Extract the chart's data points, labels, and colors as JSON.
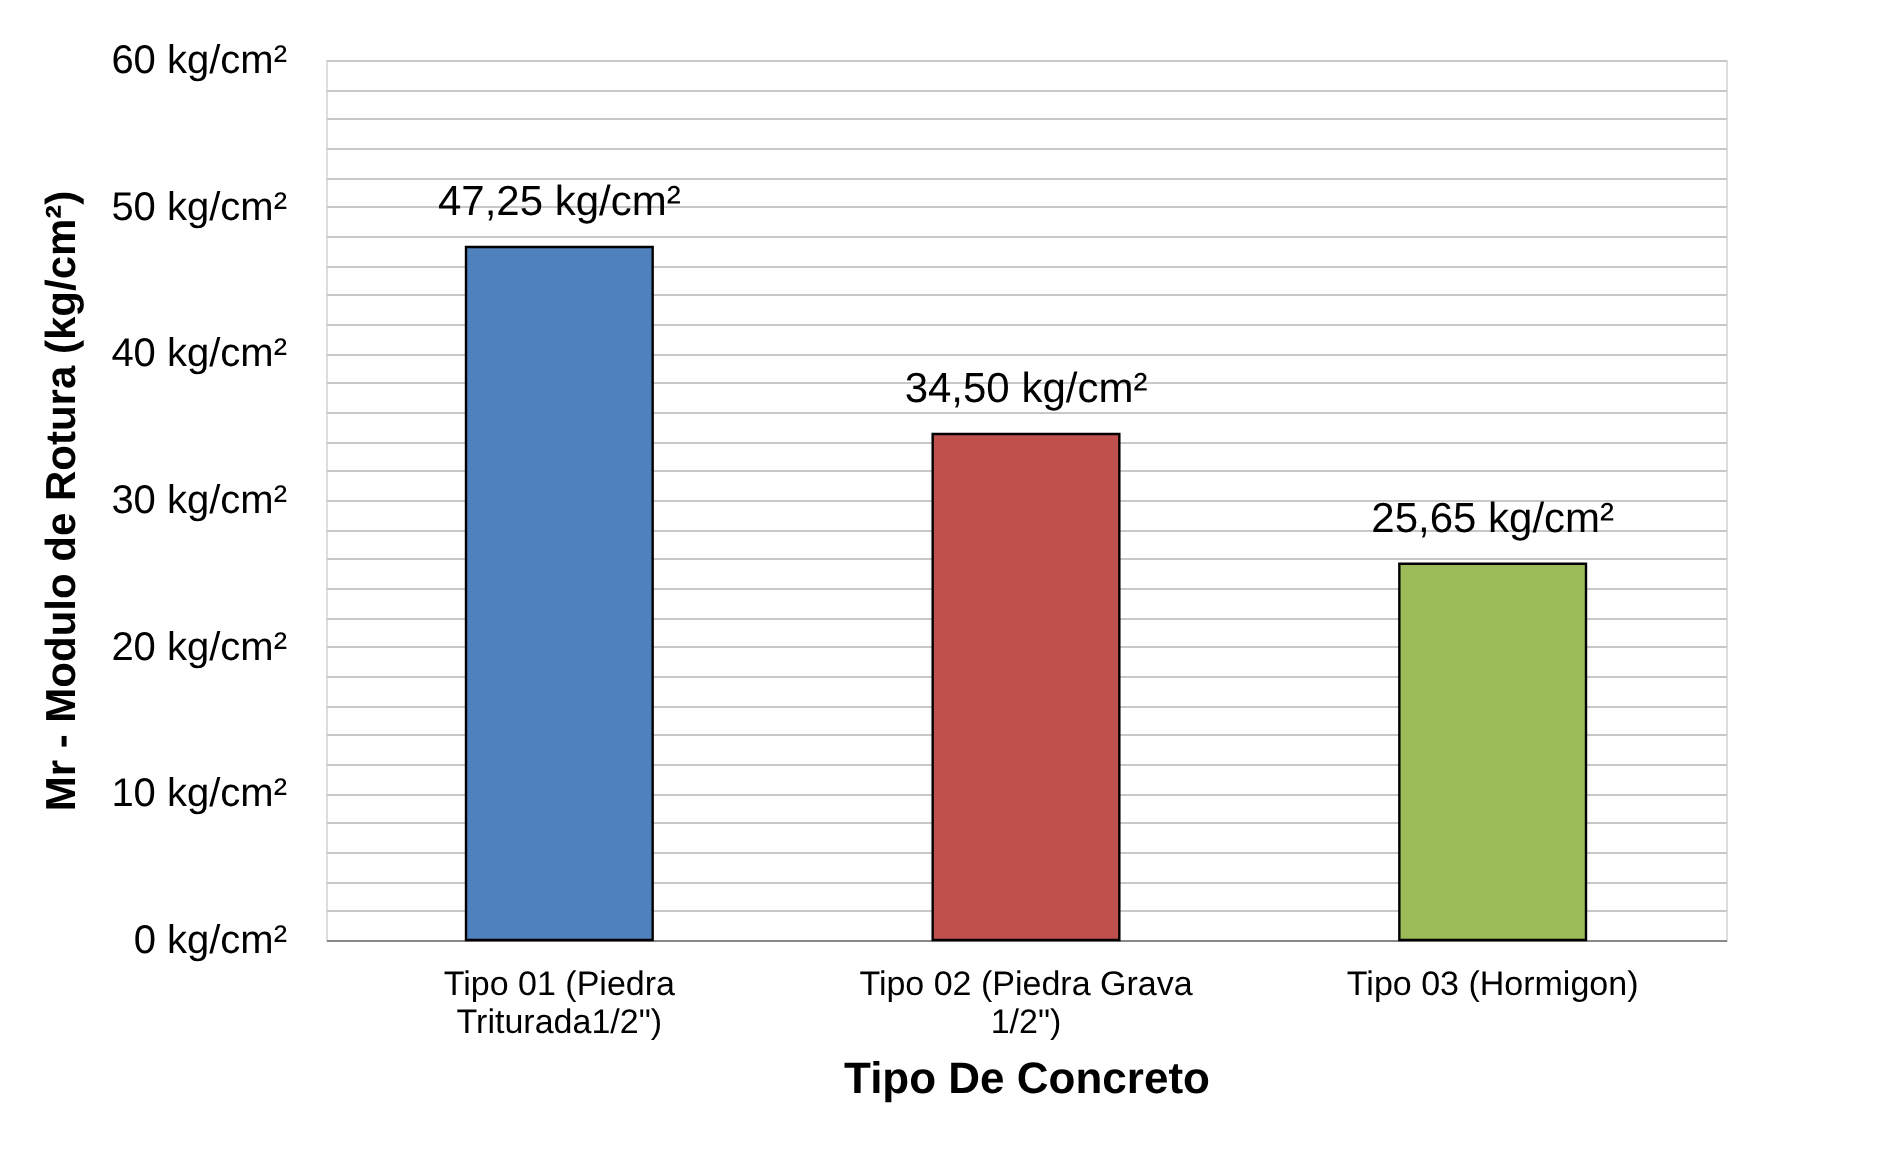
{
  "chart_data": {
    "type": "bar",
    "xlabel": "Tipo De Concreto",
    "ylabel": "Mr - Modulo de Rotura (kg/cm²)",
    "categories": [
      "Tipo 01 (Piedra Triturada1/2\")",
      "Tipo 02 (Piedra Grava 1/2\")",
      "Tipo 03 (Hormigon)"
    ],
    "values": [
      47.25,
      34.5,
      25.65
    ],
    "colors": [
      "#4f81bd",
      "#c0504d",
      "#9bbb59"
    ],
    "value_labels": [
      "47,25 kg/cm²",
      "34,50 kg/cm²",
      "25,65 kg/cm²"
    ],
    "ylim": [
      0,
      60
    ],
    "yticks": [
      {
        "value": 0,
        "label": "0 kg/cm²"
      },
      {
        "value": 2,
        "label": null
      },
      {
        "value": 4,
        "label": null
      },
      {
        "value": 6,
        "label": null
      },
      {
        "value": 8,
        "label": null
      },
      {
        "value": 10,
        "label": "10 kg/cm²"
      },
      {
        "value": 12,
        "label": null
      },
      {
        "value": 14,
        "label": null
      },
      {
        "value": 16,
        "label": null
      },
      {
        "value": 18,
        "label": null
      },
      {
        "value": 20,
        "label": "20 kg/cm²"
      },
      {
        "value": 22,
        "label": null
      },
      {
        "value": 24,
        "label": null
      },
      {
        "value": 26,
        "label": null
      },
      {
        "value": 28,
        "label": null
      },
      {
        "value": 30,
        "label": "30 kg/cm²"
      },
      {
        "value": 32,
        "label": null
      },
      {
        "value": 34,
        "label": null
      },
      {
        "value": 36,
        "label": null
      },
      {
        "value": 38,
        "label": null
      },
      {
        "value": 40,
        "label": "40 kg/cm²"
      },
      {
        "value": 42,
        "label": null
      },
      {
        "value": 44,
        "label": null
      },
      {
        "value": 46,
        "label": null
      },
      {
        "value": 48,
        "label": null
      },
      {
        "value": 50,
        "label": "50 kg/cm²"
      },
      {
        "value": 52,
        "label": null
      },
      {
        "value": 54,
        "label": null
      },
      {
        "value": 56,
        "label": null
      },
      {
        "value": 58,
        "label": null
      },
      {
        "value": 60,
        "label": "60 kg/cm²"
      }
    ],
    "grid": "y"
  }
}
